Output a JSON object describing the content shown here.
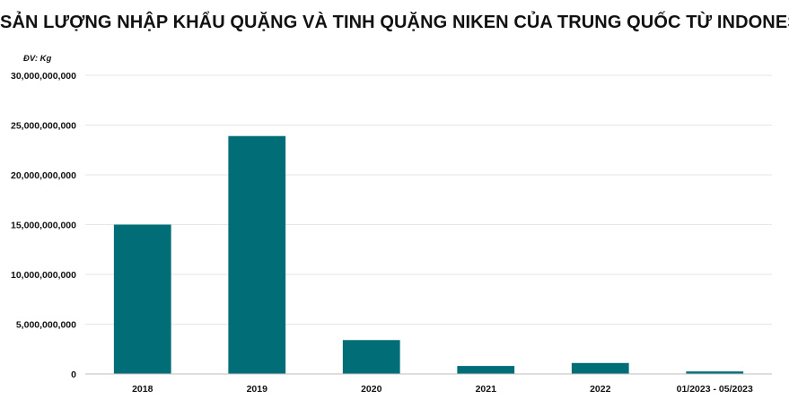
{
  "chart_data": {
    "type": "bar",
    "title": "SẢN LƯỢNG NHẬP KHẨU QUẶNG VÀ TINH QUẶNG NIKEN CỦA TRUNG QUỐC TỪ INDONESIA",
    "unit": "ĐV: Kg",
    "categories": [
      "2018",
      "2019",
      "2020",
      "2021",
      "2022",
      "01/2023 - 05/2023"
    ],
    "values": [
      15000000000,
      23900000000,
      3400000000,
      800000000,
      1100000000,
      250000000
    ],
    "ylim": [
      0,
      30000000000
    ],
    "yticks": [
      0,
      5000000000,
      10000000000,
      15000000000,
      20000000000,
      25000000000,
      30000000000
    ],
    "ytick_labels": [
      "0",
      "5,000,000,000",
      "10,000,000,000",
      "15,000,000,000",
      "20,000,000,000",
      "25,000,000,000",
      "30,000,000,000"
    ],
    "grid": true,
    "bar_color": "#006d77",
    "grid_color": "#e6e6e6",
    "axis_color": "#bdbdbd"
  }
}
